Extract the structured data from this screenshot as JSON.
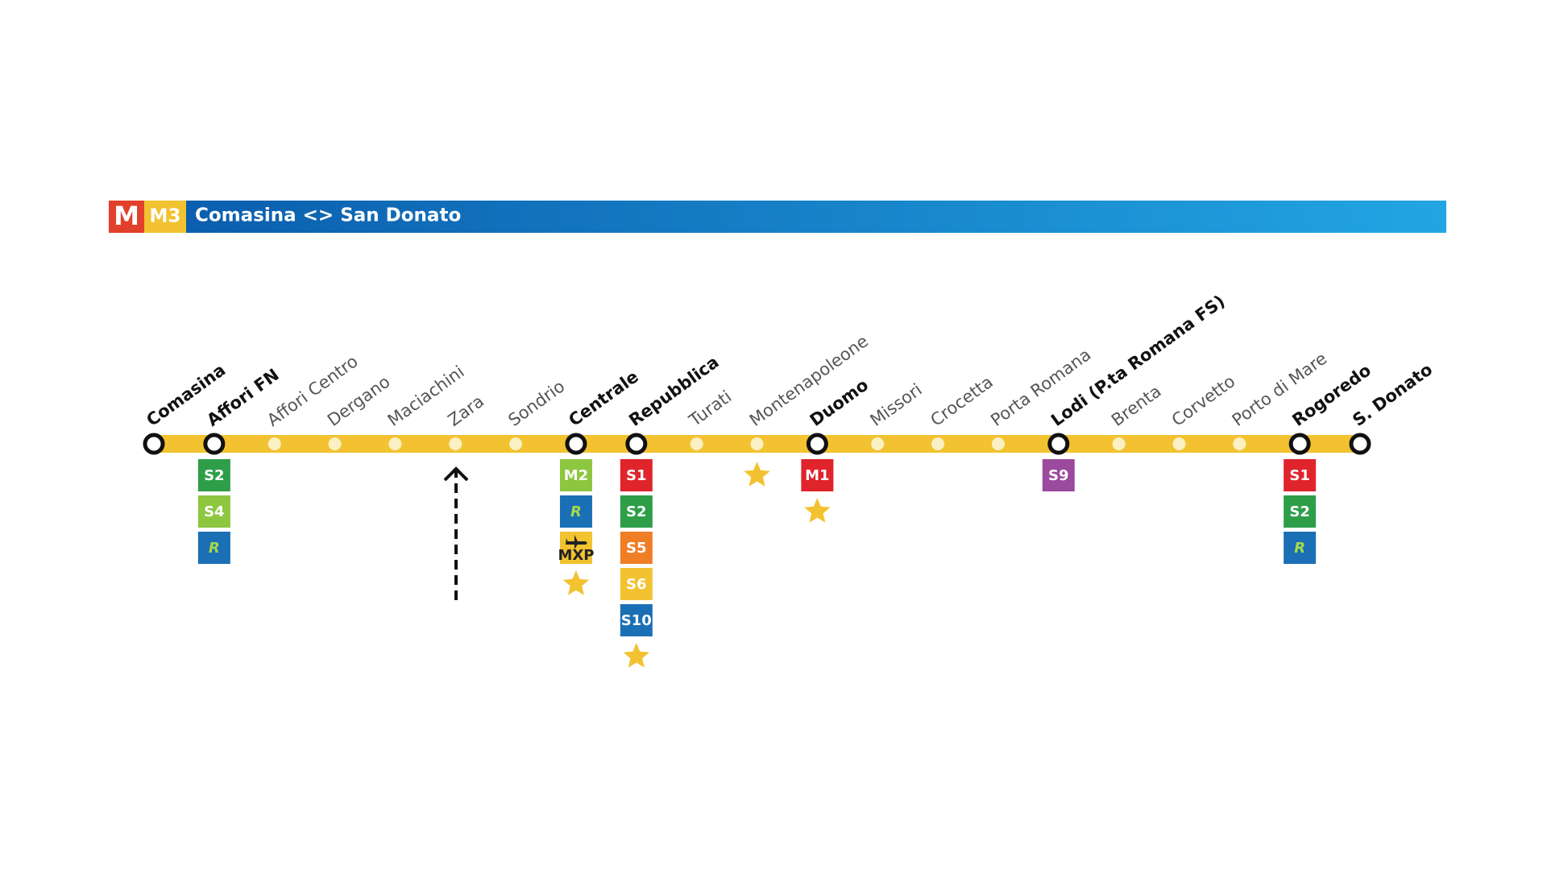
{
  "header": {
    "logo": "M",
    "line": "M3",
    "title": "Comasina <> San Donato"
  },
  "stations": [
    {
      "name": "Comasina",
      "interchange": true,
      "connections": []
    },
    {
      "name": "Affori FN",
      "interchange": true,
      "connections": [
        {
          "label": "S2",
          "color": "#2e9e48",
          "text_color": "#ffffff"
        },
        {
          "label": "S4",
          "color": "#8dc63f",
          "text_color": "#ffffff"
        },
        {
          "label": "R",
          "color": "#1a6fb5",
          "text_color": "#a6d94a"
        }
      ]
    },
    {
      "name": "Affori Centro",
      "interchange": false,
      "connections": []
    },
    {
      "name": "Dergano",
      "interchange": false,
      "connections": []
    },
    {
      "name": "Maciachini",
      "interchange": false,
      "connections": []
    },
    {
      "name": "Zara",
      "interchange": false,
      "connections": []
    },
    {
      "name": "Sondrio",
      "interchange": false,
      "connections": []
    },
    {
      "name": "Centrale",
      "interchange": true,
      "star": true,
      "connections": [
        {
          "label": "M2",
          "color": "#8dc63f",
          "text_color": "#ffffff"
        },
        {
          "label": "R",
          "color": "#1a6fb5",
          "text_color": "#a6d94a"
        },
        {
          "label": "MXP",
          "color": "#f2c230",
          "text_color": "#222222",
          "icon": "airplane"
        }
      ]
    },
    {
      "name": "Repubblica",
      "interchange": true,
      "star": true,
      "connections": [
        {
          "label": "S1",
          "color": "#e0242c",
          "text_color": "#ffffff"
        },
        {
          "label": "S2",
          "color": "#2e9e48",
          "text_color": "#ffffff"
        },
        {
          "label": "S5",
          "color": "#f07e26",
          "text_color": "#ffffff"
        },
        {
          "label": "S6",
          "color": "#f2c230",
          "text_color": "#ffffff"
        },
        {
          "label": "S10",
          "color": "#1a6fb5",
          "text_color": "#ffffff"
        }
      ]
    },
    {
      "name": "Turati",
      "interchange": false,
      "connections": []
    },
    {
      "name": "Montenapoleone",
      "interchange": false,
      "star": true,
      "connections": []
    },
    {
      "name": "Duomo",
      "interchange": true,
      "star": true,
      "connections": [
        {
          "label": "M1",
          "color": "#e0242c",
          "text_color": "#ffffff"
        }
      ]
    },
    {
      "name": "Missori",
      "interchange": false,
      "connections": []
    },
    {
      "name": "Crocetta",
      "interchange": false,
      "connections": []
    },
    {
      "name": "Porta Romana",
      "interchange": false,
      "connections": []
    },
    {
      "name": "Lodi (P.ta Romana FS)",
      "interchange": true,
      "connections": [
        {
          "label": "S9",
          "color": "#9b4a9e",
          "text_color": "#ffffff"
        }
      ]
    },
    {
      "name": "Brenta",
      "interchange": false,
      "connections": []
    },
    {
      "name": "Corvetto",
      "interchange": false,
      "connections": []
    },
    {
      "name": "Porto di Mare",
      "interchange": false,
      "connections": []
    },
    {
      "name": "Rogoredo",
      "interchange": true,
      "connections": [
        {
          "label": "S1",
          "color": "#e0242c",
          "text_color": "#ffffff"
        },
        {
          "label": "S2",
          "color": "#2e9e48",
          "text_color": "#ffffff"
        },
        {
          "label": "R",
          "color": "#1a6fb5",
          "text_color": "#a6d94a"
        }
      ]
    },
    {
      "name": "S. Donato",
      "interchange": true,
      "connections": []
    }
  ]
}
